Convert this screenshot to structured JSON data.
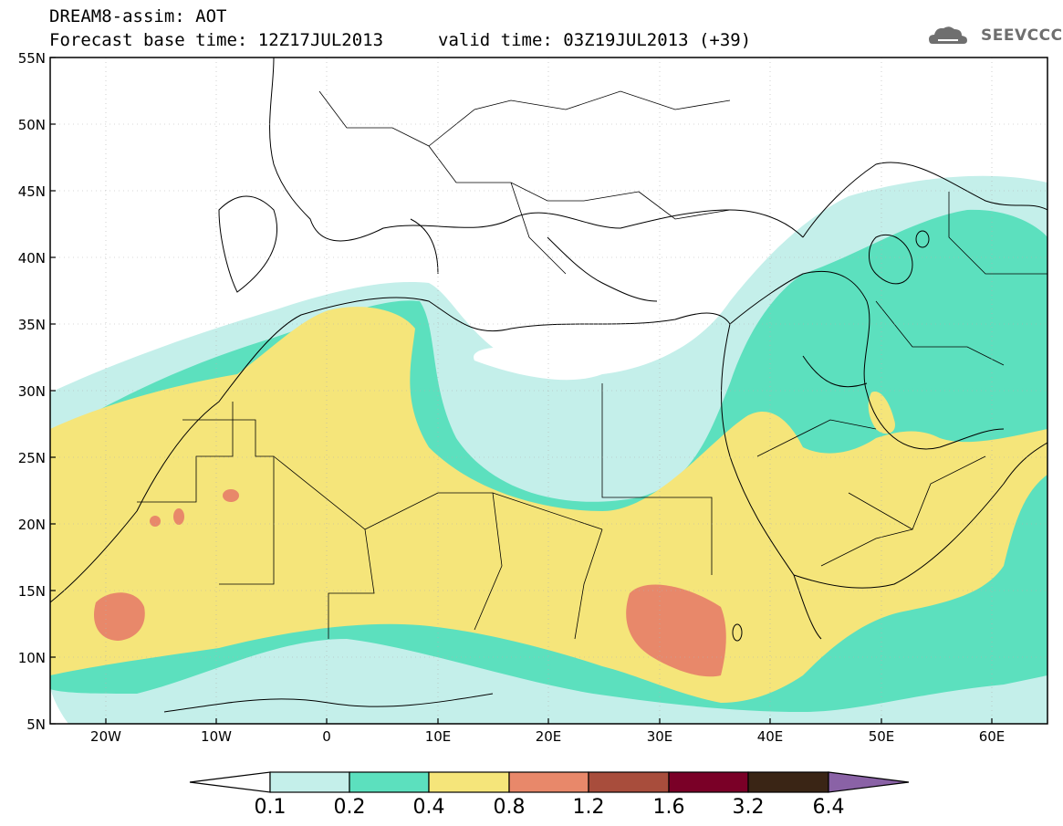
{
  "header": {
    "title": "DREAM8-assim: AOT",
    "base_time": "Forecast base time: 12Z17JUL2013",
    "valid_time": "valid time: 03Z19JUL2013 (+39)",
    "logo_text": "SEEVCCC"
  },
  "axes": {
    "lat_labels": [
      "55N",
      "50N",
      "45N",
      "40N",
      "35N",
      "30N",
      "25N",
      "20N",
      "15N",
      "10N",
      "5N"
    ],
    "lon_labels": [
      "20W",
      "10W",
      "0",
      "10E",
      "20E",
      "30E",
      "40E",
      "50E",
      "60E"
    ]
  },
  "colorbar": {
    "labels": [
      "0.1",
      "0.2",
      "0.4",
      "0.8",
      "1.2",
      "1.6",
      "3.2",
      "6.4"
    ],
    "colors": [
      "#ffffff",
      "#c4efea",
      "#5ce0be",
      "#f5e57a",
      "#e8886a",
      "#a84d3c",
      "#7a0027",
      "#3a2515",
      "#8a62a6"
    ]
  },
  "map": {
    "lat_range": [
      5,
      55
    ],
    "lon_range": [
      -25,
      65
    ],
    "colors": {
      "c01": "#c4efea",
      "c02": "#5ce0be",
      "c04": "#f5e57a",
      "c08": "#e8886a"
    }
  }
}
